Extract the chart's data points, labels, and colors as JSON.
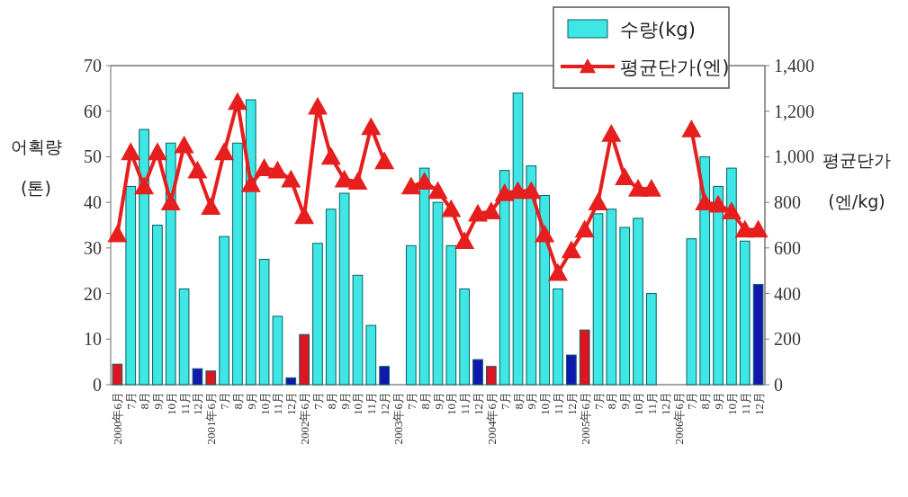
{
  "chart_data": {
    "type": "bar",
    "categories": [
      "2000年6月",
      "7月",
      "8月",
      "9月",
      "10月",
      "11月",
      "12月",
      "2001年6月",
      "7月",
      "8月",
      "9月",
      "10月",
      "11月",
      "12月",
      "2002年6月",
      "7月",
      "8月",
      "9月",
      "10月",
      "11月",
      "12月",
      "2003年6月",
      "7月",
      "8月",
      "9月",
      "10月",
      "11月",
      "12月",
      "2004年6月",
      "7月",
      "8月",
      "9月",
      "10月",
      "11月",
      "12月",
      "2005年6月",
      "7月",
      "8月",
      "9月",
      "10月",
      "11月",
      "12月",
      "2006年6月",
      "7月",
      "8月",
      "9月",
      "10月",
      "11月",
      "12月"
    ],
    "ylabel": "어획량 (톤)",
    "y2label": "평균단가 (엔/kg)",
    "ylim": [
      0,
      70
    ],
    "yticks": [
      0,
      10,
      20,
      30,
      40,
      50,
      60,
      70
    ],
    "y2lim": [
      0,
      1400
    ],
    "y2ticks": [
      0,
      200,
      400,
      600,
      800,
      {
        "value": 1000,
        "label": "1,000"
      },
      {
        "value": 1200,
        "label": "1,200"
      },
      {
        "value": 1400,
        "label": "1,400"
      }
    ],
    "legend": "top right",
    "series": [
      {
        "name": "수량(kg)",
        "color": "#3ee6e6",
        "values": [
          4.5,
          43.5,
          56,
          35,
          53,
          21,
          3.5,
          3,
          32.5,
          53,
          62.5,
          27.5,
          15,
          1.5,
          11,
          31,
          38.5,
          42,
          24,
          13,
          4,
          0,
          30.5,
          47.5,
          40,
          30.5,
          21,
          5.5,
          4,
          47,
          64,
          48,
          41.5,
          21,
          6.5,
          12,
          37.5,
          38.5,
          34.5,
          36.5,
          20,
          0,
          0,
          32,
          50,
          43.5,
          47.5,
          31.5,
          22
        ],
        "colors": [
          "#e01420",
          "#3ee6e6",
          "#3ee6e6",
          "#3ee6e6",
          "#3ee6e6",
          "#3ee6e6",
          "#1018b0",
          "#e01420",
          "#3ee6e6",
          "#3ee6e6",
          "#3ee6e6",
          "#3ee6e6",
          "#3ee6e6",
          "#1018b0",
          "#e01420",
          "#3ee6e6",
          "#3ee6e6",
          "#3ee6e6",
          "#3ee6e6",
          "#3ee6e6",
          "#1018b0",
          "#e01420",
          "#3ee6e6",
          "#3ee6e6",
          "#3ee6e6",
          "#3ee6e6",
          "#3ee6e6",
          "#1018b0",
          "#e01420",
          "#3ee6e6",
          "#3ee6e6",
          "#3ee6e6",
          "#3ee6e6",
          "#3ee6e6",
          "#1018b0",
          "#e01420",
          "#3ee6e6",
          "#3ee6e6",
          "#3ee6e6",
          "#3ee6e6",
          "#3ee6e6",
          "#1018b0",
          "#e01420",
          "#3ee6e6",
          "#3ee6e6",
          "#3ee6e6",
          "#3ee6e6",
          "#3ee6e6",
          "#1018b0"
        ]
      },
      {
        "name": "평균단가(엔)",
        "type": "line",
        "axis": "y2",
        "color": "#e61e1e",
        "marker": "triangle",
        "values": [
          660,
          1020,
          870,
          1020,
          800,
          1050,
          940,
          780,
          1020,
          1240,
          880,
          950,
          940,
          900,
          740,
          1220,
          1000,
          900,
          890,
          1130,
          980,
          null,
          870,
          890,
          850,
          770,
          630,
          750,
          760,
          840,
          850,
          850,
          660,
          490,
          590,
          680,
          800,
          1100,
          910,
          860,
          860,
          null,
          null,
          1120,
          800,
          790,
          760,
          680,
          680
        ]
      }
    ]
  }
}
